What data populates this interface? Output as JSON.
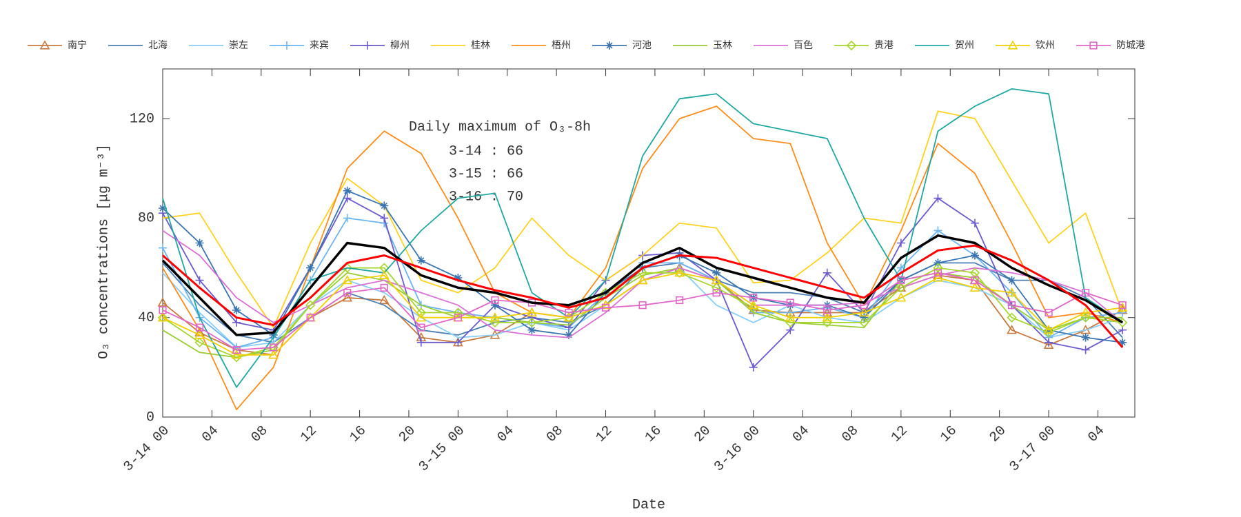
{
  "chart_data": {
    "type": "line",
    "xlabel": "Date",
    "ylabel": "O₃ concentrations [μg m⁻³]",
    "annotation": {
      "title": "Daily maximum of O₃-8h",
      "lines": [
        "3-14 : 66",
        "3-15 : 66",
        "3-16 : 70"
      ]
    },
    "x": [
      0,
      3,
      6,
      9,
      12,
      15,
      18,
      21,
      24,
      27,
      30,
      33,
      36,
      39,
      42,
      45,
      48,
      51,
      54,
      57,
      60,
      63,
      66,
      69,
      72,
      75,
      78
    ],
    "xlim": [
      0,
      79
    ],
    "xticks": [
      {
        "value": 0,
        "label": "3-14 00"
      },
      {
        "value": 4,
        "label": "04"
      },
      {
        "value": 8,
        "label": "08"
      },
      {
        "value": 12,
        "label": "12"
      },
      {
        "value": 16,
        "label": "16"
      },
      {
        "value": 20,
        "label": "20"
      },
      {
        "value": 24,
        "label": "3-15 00"
      },
      {
        "value": 28,
        "label": "04"
      },
      {
        "value": 32,
        "label": "08"
      },
      {
        "value": 36,
        "label": "12"
      },
      {
        "value": 40,
        "label": "16"
      },
      {
        "value": 44,
        "label": "20"
      },
      {
        "value": 48,
        "label": "3-16 00"
      },
      {
        "value": 52,
        "label": "04"
      },
      {
        "value": 56,
        "label": "08"
      },
      {
        "value": 60,
        "label": "12"
      },
      {
        "value": 64,
        "label": "16"
      },
      {
        "value": 68,
        "label": "20"
      },
      {
        "value": 72,
        "label": "3-17 00"
      },
      {
        "value": 76,
        "label": "04"
      }
    ],
    "ylim": [
      0,
      140
    ],
    "yticks": [
      0,
      40,
      80,
      120
    ],
    "series": [
      {
        "name": "南宁",
        "color": "#c87a3e",
        "marker": "triangle",
        "values": [
          46,
          34,
          27,
          25,
          40,
          48,
          47,
          32,
          30,
          33,
          42,
          40,
          45,
          55,
          60,
          55,
          43,
          42,
          42,
          42,
          52,
          57,
          55,
          35,
          29,
          35,
          43
        ]
      },
      {
        "name": "北海",
        "color": "#4a7fb5",
        "marker": "none",
        "values": [
          62,
          45,
          33,
          30,
          40,
          50,
          45,
          35,
          33,
          38,
          40,
          38,
          45,
          60,
          62,
          55,
          50,
          50,
          48,
          42,
          55,
          62,
          62,
          55,
          55,
          48,
          32
        ]
      },
      {
        "name": "崇左",
        "color": "#87cefa",
        "marker": "none",
        "values": [
          58,
          42,
          28,
          30,
          45,
          55,
          50,
          40,
          32,
          33,
          38,
          35,
          45,
          55,
          60,
          45,
          38,
          45,
          40,
          38,
          48,
          55,
          52,
          45,
          32,
          35,
          40
        ]
      },
      {
        "name": "来宾",
        "color": "#6cb4ee",
        "marker": "plus",
        "values": [
          68,
          40,
          28,
          32,
          55,
          80,
          78,
          45,
          42,
          40,
          38,
          36,
          50,
          62,
          62,
          55,
          42,
          42,
          44,
          40,
          60,
          75,
          65,
          50,
          32,
          40,
          42
        ]
      },
      {
        "name": "柳州",
        "color": "#6a5acd",
        "marker": "plus",
        "values": [
          82,
          55,
          38,
          35,
          60,
          88,
          80,
          30,
          30,
          45,
          40,
          36,
          55,
          65,
          66,
          55,
          20,
          35,
          58,
          42,
          70,
          88,
          78,
          45,
          30,
          27,
          35
        ]
      },
      {
        "name": "桂林",
        "color": "#ffd21f",
        "marker": "none",
        "values": [
          80,
          82,
          58,
          36,
          70,
          96,
          85,
          55,
          50,
          60,
          80,
          65,
          55,
          65,
          78,
          76,
          54,
          55,
          66,
          80,
          78,
          123,
          120,
          95,
          70,
          82,
          42
        ]
      },
      {
        "name": "梧州",
        "color": "#ff8c1a",
        "marker": "none",
        "values": [
          60,
          35,
          3,
          20,
          60,
          100,
          115,
          106,
          80,
          50,
          42,
          40,
          60,
          100,
          120,
          125,
          112,
          110,
          70,
          45,
          75,
          110,
          98,
          70,
          40,
          42,
          38
        ]
      },
      {
        "name": "河池",
        "color": "#3a75b0",
        "marker": "star",
        "values": [
          84,
          70,
          43,
          33,
          60,
          91,
          85,
          63,
          56,
          45,
          35,
          33,
          50,
          60,
          65,
          58,
          48,
          45,
          45,
          40,
          55,
          62,
          65,
          55,
          35,
          32,
          30
        ]
      },
      {
        "name": "玉林",
        "color": "#9acd32",
        "marker": "none",
        "values": [
          35,
          26,
          24,
          27,
          45,
          58,
          55,
          45,
          40,
          40,
          38,
          37,
          48,
          57,
          60,
          55,
          42,
          38,
          37,
          36,
          55,
          58,
          56,
          45,
          35,
          40,
          40
        ]
      },
      {
        "name": "百色",
        "color": "#da70d6",
        "marker": "none",
        "values": [
          75,
          65,
          48,
          38,
          45,
          52,
          55,
          50,
          45,
          35,
          33,
          32,
          42,
          55,
          60,
          55,
          45,
          45,
          45,
          46,
          52,
          57,
          60,
          58,
          55,
          50,
          38
        ]
      },
      {
        "name": "贵港",
        "color": "#a6d52b",
        "marker": "diamond",
        "values": [
          40,
          30,
          24,
          28,
          45,
          60,
          60,
          42,
          42,
          38,
          38,
          40,
          50,
          58,
          58,
          52,
          44,
          38,
          38,
          38,
          52,
          60,
          58,
          40,
          34,
          40,
          38
        ]
      },
      {
        "name": "贺州",
        "color": "#20a8a0",
        "marker": "none",
        "values": [
          88,
          40,
          12,
          32,
          55,
          60,
          58,
          75,
          88,
          90,
          50,
          40,
          55,
          105,
          128,
          130,
          118,
          115,
          112,
          80,
          55,
          115,
          125,
          132,
          130,
          48,
          38
        ]
      },
      {
        "name": "钦州",
        "color": "#f0d000",
        "marker": "triangle",
        "values": [
          40,
          33,
          25,
          25,
          40,
          55,
          57,
          40,
          40,
          40,
          42,
          40,
          45,
          55,
          58,
          55,
          45,
          40,
          40,
          42,
          48,
          56,
          52,
          50,
          35,
          42,
          44
        ]
      },
      {
        "name": "防城港",
        "color": "#e066c8",
        "marker": "square",
        "values": [
          43,
          36,
          27,
          28,
          40,
          50,
          52,
          36,
          40,
          47,
          46,
          42,
          44,
          45,
          47,
          50,
          48,
          46,
          43,
          45,
          55,
          58,
          55,
          45,
          42,
          50,
          45
        ]
      },
      {
        "color": "#000000",
        "marker": "none",
        "width": 3.5,
        "values": [
          63,
          48,
          33,
          34,
          52,
          70,
          68,
          57,
          52,
          50,
          46,
          45,
          50,
          62,
          68,
          60,
          56,
          52,
          48,
          46,
          64,
          73,
          70,
          60,
          53,
          47,
          38
        ]
      },
      {
        "color": "#ff0000",
        "marker": "none",
        "width": 3,
        "values": [
          65,
          52,
          40,
          37,
          48,
          62,
          65,
          60,
          55,
          51,
          48,
          44,
          48,
          60,
          65,
          64,
          60,
          56,
          52,
          48,
          58,
          67,
          69,
          63,
          55,
          45,
          28
        ]
      }
    ]
  }
}
